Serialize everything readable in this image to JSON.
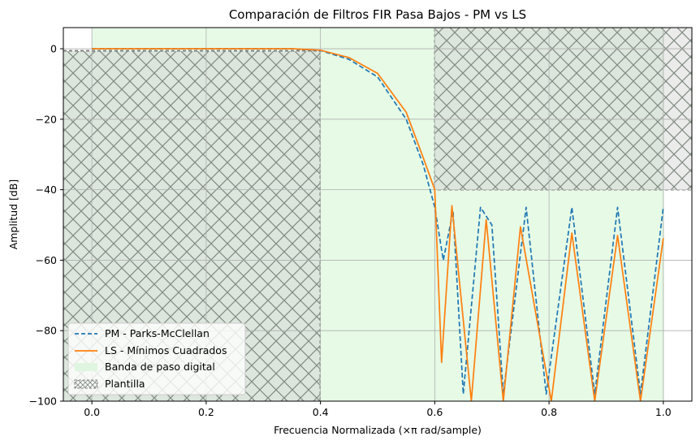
{
  "chart_data": {
    "type": "line",
    "title": "Comparación de Filtros FIR Pasa Bajos - PM vs LS",
    "xlabel": "Frecuencia Normalizada (×π rad/sample)",
    "ylabel": "Amplitud [dB]",
    "xlim": [
      -0.05,
      1.05
    ],
    "ylim": [
      -100,
      6
    ],
    "x_ticks": [
      "0.0",
      "0.2",
      "0.4",
      "0.6",
      "0.8",
      "1.0"
    ],
    "y_ticks": [
      "0",
      "−20",
      "−40",
      "−60",
      "−80",
      "−100"
    ],
    "grid": true,
    "legend_position": "lower-left",
    "template": {
      "passband_edge": 0.4,
      "stopband_edge": 0.6,
      "passband_min_db": -1,
      "stopband_max_db": -40,
      "digital_passband": [
        0.0,
        1.0
      ]
    },
    "series": [
      {
        "name": "PM - Parks-McClellan",
        "color": "#1f77b4",
        "style": "dashed",
        "x": [
          0.0,
          0.1,
          0.2,
          0.3,
          0.35,
          0.4,
          0.45,
          0.5,
          0.55,
          0.58,
          0.6,
          0.615,
          0.632,
          0.65,
          0.68,
          0.7,
          0.72,
          0.76,
          0.795,
          0.84,
          0.88,
          0.92,
          0.96,
          1.0
        ],
        "values": [
          0.0,
          0.0,
          0.0,
          0.0,
          0.0,
          -0.5,
          -3,
          -8,
          -20,
          -33,
          -45,
          -60,
          -46,
          -98,
          -45,
          -50,
          -98,
          -45,
          -98,
          -45,
          -98,
          -45,
          -98,
          -45
        ]
      },
      {
        "name": "LS - Mínimos Cuadrados",
        "color": "#ff7f0e",
        "style": "solid",
        "x": [
          0.0,
          0.1,
          0.2,
          0.3,
          0.35,
          0.4,
          0.45,
          0.5,
          0.55,
          0.58,
          0.6,
          0.612,
          0.63,
          0.664,
          0.69,
          0.72,
          0.75,
          0.804,
          0.84,
          0.88,
          0.92,
          0.96,
          1.0
        ],
        "values": [
          0.0,
          0.0,
          0.0,
          0.0,
          0.0,
          -0.4,
          -2.5,
          -7,
          -18,
          -31,
          -40,
          -89,
          -44.5,
          -100,
          -48.5,
          -100,
          -50.5,
          -100,
          -52.3,
          -100,
          -53,
          -100,
          -53.8
        ]
      }
    ],
    "legend": [
      {
        "label": "PM - Parks-McClellan",
        "kind": "dashed",
        "color": "#1f77b4"
      },
      {
        "label": "LS - Mínimos Cuadrados",
        "kind": "solid",
        "color": "#ff7f0e"
      },
      {
        "label": "Banda de paso digital",
        "kind": "fill",
        "color": "#dff5df"
      },
      {
        "label": "Plantilla",
        "kind": "hatch",
        "color": "#808080"
      }
    ]
  }
}
